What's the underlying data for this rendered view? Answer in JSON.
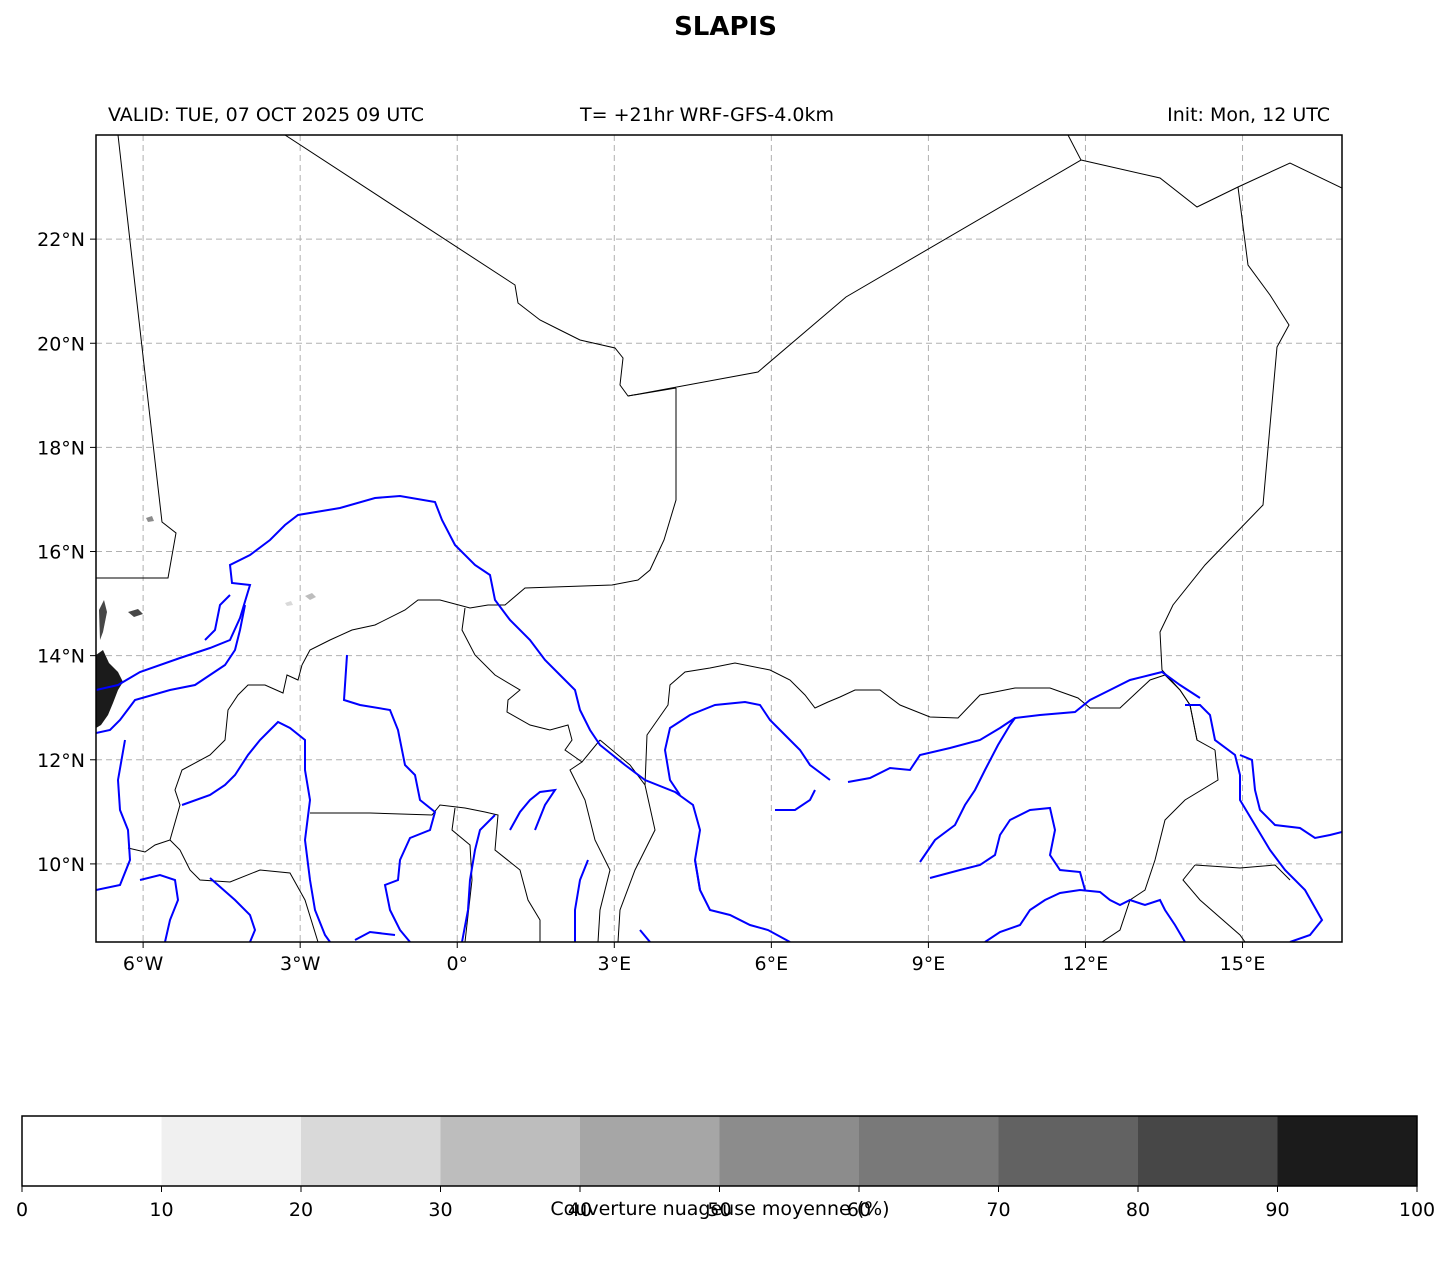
{
  "title": "SLAPIS",
  "header": {
    "valid": "VALID: TUE, 07 OCT 2025 09 UTC",
    "run": "T= +21hr WRF-GFS-4.0km",
    "init": "Init: Mon, 12 UTC"
  },
  "map": {
    "lon_range": [
      -6.9,
      16.9
    ],
    "lat_range": [
      8.5,
      24.0
    ],
    "lon_ticks": [
      -6,
      -3,
      0,
      3,
      6,
      9,
      12,
      15
    ],
    "lon_tick_labels": [
      "6°W",
      "3°W",
      "0°",
      "3°E",
      "6°E",
      "9°E",
      "12°E",
      "15°E"
    ],
    "lat_ticks": [
      10,
      12,
      14,
      16,
      18,
      20,
      22
    ],
    "lat_tick_labels": [
      "10°N",
      "12°N",
      "14°N",
      "16°N",
      "18°N",
      "20°N",
      "22°N"
    ],
    "gridlines": true,
    "colors": {
      "borders": "#000000",
      "rivers": "#0000ff",
      "grid": "#b0b0b0"
    }
  },
  "colorbar": {
    "label": "Couverture nuageuse moyenne (%)",
    "ticks": [
      "0",
      "10",
      "20",
      "30",
      "40",
      "50",
      "60",
      "70",
      "80",
      "90",
      "100"
    ],
    "colors": [
      "#ffffff",
      "#f0f0f0",
      "#d9d9d9",
      "#bdbdbd",
      "#a6a6a6",
      "#8c8c8c",
      "#797979",
      "#626262",
      "#474747",
      "#1b1b1b"
    ]
  }
}
